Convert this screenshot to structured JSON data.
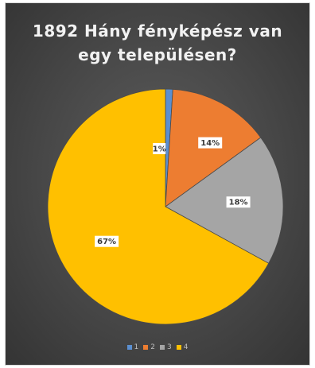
{
  "chart_data": {
    "type": "pie",
    "title": "1892 Hány fényképész van egy településen?",
    "title_lines": [
      "1892 Hány fényképész van",
      "egy településen?"
    ],
    "categories": [
      "1",
      "2",
      "3",
      "4"
    ],
    "values": [
      1,
      14,
      18,
      67
    ],
    "data_labels": [
      "1%",
      "14%",
      "18%",
      "67%"
    ],
    "colors": [
      "#5b8fd0",
      "#ed7d31",
      "#a5a5a5",
      "#ffc000"
    ],
    "legend_position": "bottom",
    "start_angle_deg": 0,
    "direction": "clockwise"
  }
}
